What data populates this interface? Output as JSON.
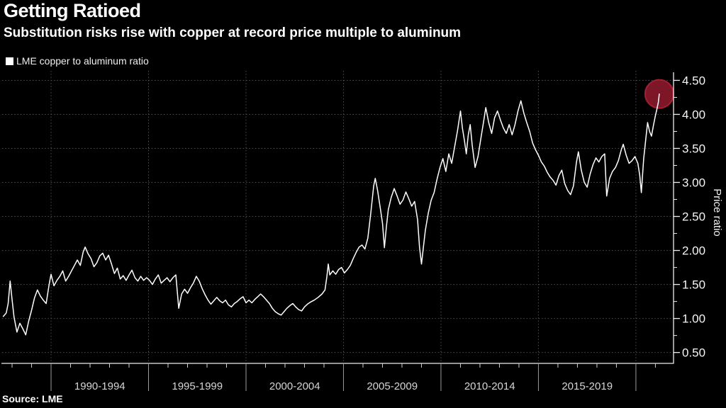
{
  "header": {
    "title": "Getting Ratioed",
    "subtitle": "Substitution risks rise with copper at record price multiple to aluminum"
  },
  "legend": {
    "label": "LME copper to aluminum ratio",
    "swatch_color": "#ffffff"
  },
  "source": {
    "text": "Source: LME"
  },
  "colors": {
    "background": "#000000",
    "line": "#ffffff",
    "grid": "#4f4f4f",
    "axis": "#ededed",
    "tick_label": "#f5f5f5",
    "period_label": "#d6d6d6",
    "divider": "#9a9a9a",
    "minor_tick": "#cfcfcf",
    "highlight_fill": "#7d1728",
    "highlight_stroke": "#a41f33"
  },
  "chart_data": {
    "type": "line",
    "title": "Getting Ratioed",
    "subtitle": "Substitution risks rise with copper at record price multiple to aluminum",
    "xlabel": "",
    "ylabel": "Price ratio",
    "legend_position": "top-left",
    "grid": {
      "horizontal": true,
      "vertical": true,
      "style": "dotted"
    },
    "xlim": [
      1987.49,
      2021.93
    ],
    "ylim": [
      0.34,
      4.64
    ],
    "y_axis": {
      "label": "Price ratio",
      "ticks": [
        {
          "value": 0.5,
          "label": "0.50"
        },
        {
          "value": 1.0,
          "label": "1.00"
        },
        {
          "value": 1.5,
          "label": "1.50"
        },
        {
          "value": 2.0,
          "label": "2.00"
        },
        {
          "value": 2.5,
          "label": "2.50"
        },
        {
          "value": 3.0,
          "label": "3.00"
        },
        {
          "value": 3.5,
          "label": "3.50"
        },
        {
          "value": 4.0,
          "label": "4.00"
        },
        {
          "value": 4.5,
          "label": "4.50"
        }
      ],
      "minor_tick_values": [
        0.75,
        1.25,
        1.75,
        2.25,
        2.75,
        3.25,
        3.75,
        4.25
      ]
    },
    "x_axis": {
      "divider_years": [
        1990,
        1995,
        2000,
        2005,
        2010,
        2015,
        2020
      ],
      "period_labels": [
        {
          "text": "1990-1994",
          "center": 1992.5
        },
        {
          "text": "1995-1999",
          "center": 1997.5
        },
        {
          "text": "2000-2004",
          "center": 2002.5
        },
        {
          "text": "2005-2009",
          "center": 2007.5
        },
        {
          "text": "2010-2014",
          "center": 2012.5
        },
        {
          "text": "2015-2019",
          "center": 2017.5
        }
      ],
      "minor_tick_year_start": 1988,
      "minor_tick_year_end": 2021
    },
    "highlight": {
      "year": 2021.2,
      "value": 4.3,
      "radius": 20
    },
    "series": [
      {
        "name": "LME copper to aluminum ratio",
        "color": "#ffffff",
        "points": [
          [
            1987.55,
            1.03
          ],
          [
            1987.7,
            1.08
          ],
          [
            1987.8,
            1.22
          ],
          [
            1987.9,
            1.55
          ],
          [
            1988.0,
            1.28
          ],
          [
            1988.1,
            1.02
          ],
          [
            1988.25,
            0.8
          ],
          [
            1988.4,
            0.93
          ],
          [
            1988.55,
            0.85
          ],
          [
            1988.7,
            0.76
          ],
          [
            1988.85,
            0.96
          ],
          [
            1989.0,
            1.12
          ],
          [
            1989.15,
            1.3
          ],
          [
            1989.3,
            1.42
          ],
          [
            1989.45,
            1.33
          ],
          [
            1989.6,
            1.27
          ],
          [
            1989.75,
            1.22
          ],
          [
            1989.9,
            1.5
          ],
          [
            1990.0,
            1.65
          ],
          [
            1990.15,
            1.48
          ],
          [
            1990.3,
            1.56
          ],
          [
            1990.45,
            1.62
          ],
          [
            1990.6,
            1.7
          ],
          [
            1990.75,
            1.55
          ],
          [
            1990.9,
            1.62
          ],
          [
            1991.05,
            1.7
          ],
          [
            1991.2,
            1.78
          ],
          [
            1991.35,
            1.86
          ],
          [
            1991.5,
            1.78
          ],
          [
            1991.65,
            1.98
          ],
          [
            1991.75,
            2.05
          ],
          [
            1991.9,
            1.95
          ],
          [
            1992.05,
            1.88
          ],
          [
            1992.2,
            1.76
          ],
          [
            1992.35,
            1.82
          ],
          [
            1992.5,
            1.92
          ],
          [
            1992.65,
            1.96
          ],
          [
            1992.8,
            1.86
          ],
          [
            1992.95,
            1.93
          ],
          [
            1993.1,
            1.8
          ],
          [
            1993.25,
            1.66
          ],
          [
            1993.4,
            1.74
          ],
          [
            1993.55,
            1.58
          ],
          [
            1993.7,
            1.63
          ],
          [
            1993.85,
            1.56
          ],
          [
            1994.0,
            1.64
          ],
          [
            1994.15,
            1.71
          ],
          [
            1994.3,
            1.6
          ],
          [
            1994.45,
            1.55
          ],
          [
            1994.6,
            1.62
          ],
          [
            1994.75,
            1.56
          ],
          [
            1994.9,
            1.6
          ],
          [
            1995.05,
            1.56
          ],
          [
            1995.2,
            1.5
          ],
          [
            1995.35,
            1.58
          ],
          [
            1995.5,
            1.64
          ],
          [
            1995.65,
            1.52
          ],
          [
            1995.8,
            1.56
          ],
          [
            1995.95,
            1.6
          ],
          [
            1996.1,
            1.54
          ],
          [
            1996.25,
            1.6
          ],
          [
            1996.4,
            1.64
          ],
          [
            1996.55,
            1.15
          ],
          [
            1996.7,
            1.36
          ],
          [
            1996.85,
            1.43
          ],
          [
            1997.0,
            1.37
          ],
          [
            1997.15,
            1.45
          ],
          [
            1997.3,
            1.52
          ],
          [
            1997.45,
            1.62
          ],
          [
            1997.6,
            1.55
          ],
          [
            1997.75,
            1.44
          ],
          [
            1997.9,
            1.35
          ],
          [
            1998.05,
            1.27
          ],
          [
            1998.2,
            1.21
          ],
          [
            1998.35,
            1.26
          ],
          [
            1998.5,
            1.31
          ],
          [
            1998.65,
            1.26
          ],
          [
            1998.8,
            1.23
          ],
          [
            1998.95,
            1.27
          ],
          [
            1999.1,
            1.2
          ],
          [
            1999.25,
            1.17
          ],
          [
            1999.4,
            1.22
          ],
          [
            1999.55,
            1.25
          ],
          [
            1999.7,
            1.29
          ],
          [
            1999.85,
            1.32
          ],
          [
            2000.0,
            1.23
          ],
          [
            2000.15,
            1.27
          ],
          [
            2000.3,
            1.23
          ],
          [
            2000.45,
            1.28
          ],
          [
            2000.6,
            1.32
          ],
          [
            2000.75,
            1.36
          ],
          [
            2000.9,
            1.32
          ],
          [
            2001.05,
            1.27
          ],
          [
            2001.2,
            1.22
          ],
          [
            2001.35,
            1.15
          ],
          [
            2001.5,
            1.1
          ],
          [
            2001.65,
            1.07
          ],
          [
            2001.8,
            1.05
          ],
          [
            2001.95,
            1.1
          ],
          [
            2002.1,
            1.15
          ],
          [
            2002.25,
            1.19
          ],
          [
            2002.4,
            1.22
          ],
          [
            2002.55,
            1.17
          ],
          [
            2002.7,
            1.13
          ],
          [
            2002.85,
            1.11
          ],
          [
            2003.0,
            1.17
          ],
          [
            2003.15,
            1.21
          ],
          [
            2003.3,
            1.24
          ],
          [
            2003.5,
            1.27
          ],
          [
            2003.7,
            1.31
          ],
          [
            2003.9,
            1.36
          ],
          [
            2004.05,
            1.42
          ],
          [
            2004.15,
            1.62
          ],
          [
            2004.22,
            1.8
          ],
          [
            2004.3,
            1.64
          ],
          [
            2004.45,
            1.7
          ],
          [
            2004.6,
            1.65
          ],
          [
            2004.75,
            1.72
          ],
          [
            2004.9,
            1.75
          ],
          [
            2005.05,
            1.67
          ],
          [
            2005.2,
            1.72
          ],
          [
            2005.35,
            1.78
          ],
          [
            2005.5,
            1.88
          ],
          [
            2005.65,
            1.97
          ],
          [
            2005.8,
            2.05
          ],
          [
            2005.95,
            2.08
          ],
          [
            2006.1,
            2.02
          ],
          [
            2006.25,
            2.18
          ],
          [
            2006.4,
            2.55
          ],
          [
            2006.55,
            2.95
          ],
          [
            2006.63,
            3.06
          ],
          [
            2006.75,
            2.88
          ],
          [
            2006.9,
            2.6
          ],
          [
            2007.0,
            2.4
          ],
          [
            2007.1,
            2.04
          ],
          [
            2007.2,
            2.35
          ],
          [
            2007.3,
            2.6
          ],
          [
            2007.45,
            2.78
          ],
          [
            2007.6,
            2.91
          ],
          [
            2007.75,
            2.8
          ],
          [
            2007.9,
            2.68
          ],
          [
            2008.05,
            2.74
          ],
          [
            2008.2,
            2.86
          ],
          [
            2008.35,
            2.76
          ],
          [
            2008.5,
            2.65
          ],
          [
            2008.65,
            2.72
          ],
          [
            2008.8,
            2.45
          ],
          [
            2008.9,
            2.05
          ],
          [
            2009.0,
            1.8
          ],
          [
            2009.1,
            2.05
          ],
          [
            2009.2,
            2.3
          ],
          [
            2009.35,
            2.55
          ],
          [
            2009.5,
            2.74
          ],
          [
            2009.65,
            2.85
          ],
          [
            2009.8,
            3.05
          ],
          [
            2009.95,
            3.22
          ],
          [
            2010.1,
            3.35
          ],
          [
            2010.25,
            3.16
          ],
          [
            2010.4,
            3.42
          ],
          [
            2010.55,
            3.28
          ],
          [
            2010.7,
            3.52
          ],
          [
            2010.85,
            3.76
          ],
          [
            2011.0,
            4.05
          ],
          [
            2011.1,
            3.8
          ],
          [
            2011.2,
            3.62
          ],
          [
            2011.3,
            3.42
          ],
          [
            2011.4,
            3.7
          ],
          [
            2011.5,
            3.85
          ],
          [
            2011.6,
            3.55
          ],
          [
            2011.75,
            3.22
          ],
          [
            2011.9,
            3.38
          ],
          [
            2012.05,
            3.65
          ],
          [
            2012.2,
            3.92
          ],
          [
            2012.3,
            4.1
          ],
          [
            2012.45,
            3.88
          ],
          [
            2012.6,
            3.72
          ],
          [
            2012.75,
            3.95
          ],
          [
            2012.9,
            4.05
          ],
          [
            2013.05,
            3.92
          ],
          [
            2013.2,
            3.8
          ],
          [
            2013.35,
            3.72
          ],
          [
            2013.5,
            3.85
          ],
          [
            2013.65,
            3.7
          ],
          [
            2013.8,
            3.85
          ],
          [
            2013.95,
            4.05
          ],
          [
            2014.1,
            4.2
          ],
          [
            2014.25,
            4.02
          ],
          [
            2014.4,
            3.88
          ],
          [
            2014.55,
            3.75
          ],
          [
            2014.7,
            3.58
          ],
          [
            2014.85,
            3.48
          ],
          [
            2015.0,
            3.4
          ],
          [
            2015.15,
            3.3
          ],
          [
            2015.3,
            3.24
          ],
          [
            2015.45,
            3.15
          ],
          [
            2015.6,
            3.08
          ],
          [
            2015.75,
            3.03
          ],
          [
            2015.9,
            2.96
          ],
          [
            2016.05,
            3.1
          ],
          [
            2016.2,
            3.18
          ],
          [
            2016.35,
            2.98
          ],
          [
            2016.5,
            2.88
          ],
          [
            2016.65,
            2.82
          ],
          [
            2016.8,
            2.95
          ],
          [
            2016.95,
            3.3
          ],
          [
            2017.05,
            3.45
          ],
          [
            2017.2,
            3.18
          ],
          [
            2017.35,
            3.0
          ],
          [
            2017.5,
            2.93
          ],
          [
            2017.65,
            3.12
          ],
          [
            2017.8,
            3.26
          ],
          [
            2017.95,
            3.36
          ],
          [
            2018.1,
            3.3
          ],
          [
            2018.25,
            3.38
          ],
          [
            2018.4,
            3.42
          ],
          [
            2018.5,
            2.8
          ],
          [
            2018.65,
            3.06
          ],
          [
            2018.8,
            3.16
          ],
          [
            2018.95,
            3.22
          ],
          [
            2019.1,
            3.32
          ],
          [
            2019.25,
            3.48
          ],
          [
            2019.35,
            3.56
          ],
          [
            2019.5,
            3.4
          ],
          [
            2019.65,
            3.28
          ],
          [
            2019.8,
            3.32
          ],
          [
            2019.95,
            3.38
          ],
          [
            2020.1,
            3.28
          ],
          [
            2020.2,
            3.1
          ],
          [
            2020.28,
            2.85
          ],
          [
            2020.4,
            3.35
          ],
          [
            2020.5,
            3.62
          ],
          [
            2020.6,
            3.88
          ],
          [
            2020.7,
            3.75
          ],
          [
            2020.8,
            3.68
          ],
          [
            2020.9,
            3.84
          ],
          [
            2021.0,
            3.98
          ],
          [
            2021.08,
            4.08
          ],
          [
            2021.15,
            4.18
          ],
          [
            2021.2,
            4.3
          ]
        ]
      }
    ]
  }
}
